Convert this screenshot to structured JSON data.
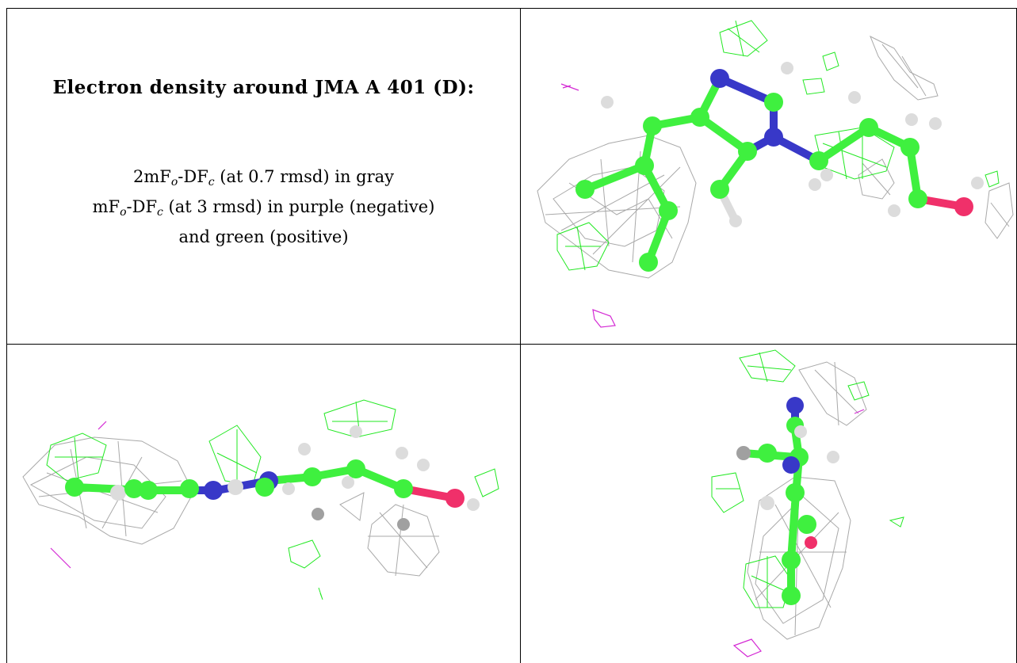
{
  "title": "Electron density around JMA A 401 (D):",
  "legend": {
    "line1": {
      "prefix": "2mF",
      "sub1": "o",
      "mid": "-DF",
      "sub2": "c",
      "suffix": " (at 0.7 rmsd) in gray"
    },
    "line2": {
      "prefix": "mF",
      "sub1": "o",
      "mid": "-DF",
      "sub2": "c",
      "suffix": " (at 3 rmsd) in purple (negative)"
    },
    "line3": "and green (positive)"
  },
  "colors": {
    "mesh_2fofc": "#a9a9a9",
    "mesh_negative": "#d42ad4",
    "mesh_positive": "#22e822",
    "carbon": "#3ff03f",
    "nitrogen": "#3838c8",
    "oxygen": "#f0306a",
    "hydrogen": "#dcdcdc"
  },
  "views": [
    {
      "name": "view-top-right",
      "description_id": "molecule-view-1"
    },
    {
      "name": "view-bottom-left",
      "description_id": "molecule-view-2"
    },
    {
      "name": "view-bottom-right",
      "description_id": "molecule-view-3"
    }
  ]
}
